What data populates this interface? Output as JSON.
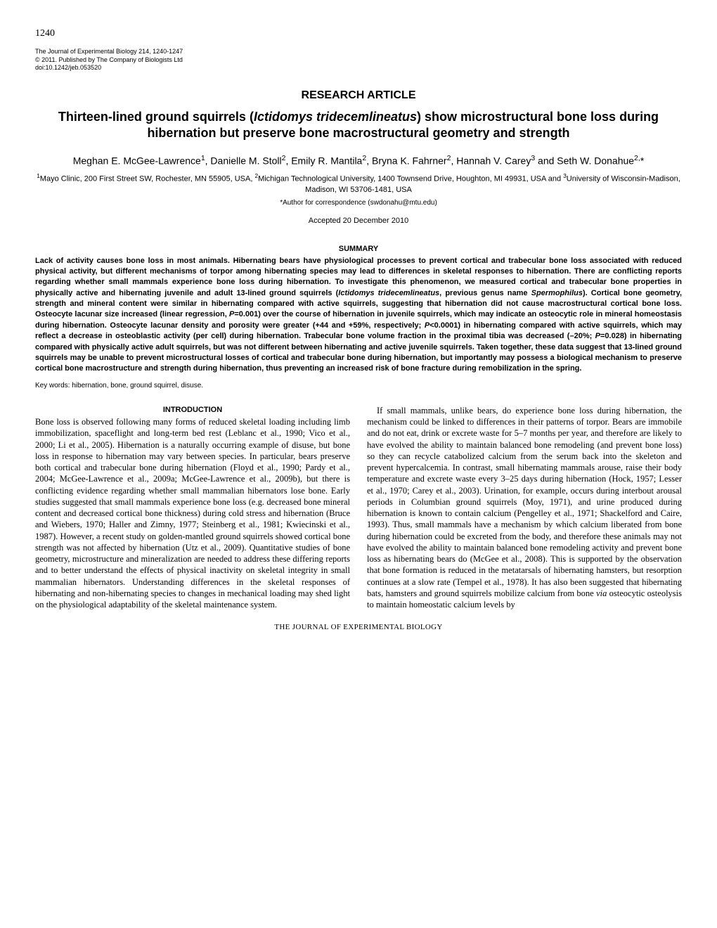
{
  "page_number": "1240",
  "journal_meta": {
    "line1": "The Journal of Experimental Biology 214, 1240-1247",
    "line2": "© 2011. Published by The Company of Biologists Ltd",
    "line3": "doi:10.1242/jeb.053520"
  },
  "article_type": "RESEARCH ARTICLE",
  "title_html": "Thirteen-lined ground squirrels (<span class='ital'>Ictidomys tridecemlineatus</span>) show microstructural bone loss during hibernation but preserve bone macrostructural geometry and strength",
  "authors_html": "Meghan E. McGee-Lawrence<sup>1</sup>, Danielle M. Stoll<sup>2</sup>, Emily R. Mantila<sup>2</sup>, Bryna K. Fahrner<sup>2</sup>, Hannah V. Carey<sup>3</sup> and Seth W. Donahue<sup>2,</sup>*",
  "affiliations_html": "<sup>1</sup>Mayo Clinic, 200 First Street SW, Rochester, MN 55905, USA, <sup>2</sup>Michigan Technological University, 1400 Townsend Drive, Houghton, MI 49931, USA and <sup>3</sup>University of Wisconsin-Madison, Madison, WI 53706-1481, USA",
  "correspondence": "*Author for correspondence (swdonahu@mtu.edu)",
  "accepted": "Accepted 20 December 2010",
  "summary_heading": "SUMMARY",
  "summary_html": "Lack of activity causes bone loss in most animals. Hibernating bears have physiological processes to prevent cortical and trabecular bone loss associated with reduced physical activity, but different mechanisms of torpor among hibernating species may lead to differences in skeletal responses to hibernation. There are conflicting reports regarding whether small mammals experience bone loss during hibernation. To investigate this phenomenon, we measured cortical and trabecular bone properties in physically active and hibernating juvenile and adult 13-lined ground squirrels (<span class='ital'>Ictidomys tridecemlineatus</span>, previous genus name <span class='ital'>Spermophilus</span>). Cortical bone geometry, strength and mineral content were similar in hibernating compared with active squirrels, suggesting that hibernation did not cause macrostructural cortical bone loss. Osteocyte lacunar size increased (linear regression, <span class='ital'>P</span>=0.001) over the course of hibernation in juvenile squirrels, which may indicate an osteocytic role in mineral homeostasis during hibernation. Osteocyte lacunar density and porosity were greater (+44 and +59%, respectively; <span class='ital'>P</span>&lt;0.0001) in hibernating compared with active squirrels, which may reflect a decrease in osteoblastic activity (per cell) during hibernation. Trabecular bone volume fraction in the proximal tibia was decreased (–20%; <span class='ital'>P</span>=0.028) in hibernating compared with physically active adult squirrels, but was not different between hibernating and active juvenile squirrels. Taken together, these data suggest that 13-lined ground squirrels may be unable to prevent microstructural losses of cortical and trabecular bone during hibernation, but importantly may possess a biological mechanism to preserve cortical bone macrostructure and strength during hibernation, thus preventing an increased risk of bone fracture during remobilization in the spring.",
  "keywords": "Key words: hibernation, bone, ground squirrel, disuse.",
  "intro_heading": "INTRODUCTION",
  "intro_para1": "Bone loss is observed following many forms of reduced skeletal loading including limb immobilization, spaceflight and long-term bed rest (Leblanc et al., 1990; Vico et al., 2000; Li et al., 2005). Hibernation is a naturally occurring example of disuse, but bone loss in response to hibernation may vary between species. In particular, bears preserve both cortical and trabecular bone during hibernation (Floyd et al., 1990; Pardy et al., 2004; McGee-Lawrence et al., 2009a; McGee-Lawrence et al., 2009b), but there is conflicting evidence regarding whether small mammalian hibernators lose bone. Early studies suggested that small mammals experience bone loss (e.g. decreased bone mineral content and decreased cortical bone thickness) during cold stress and hibernation (Bruce and Wiebers, 1970; Haller and Zimny, 1977; Steinberg et al., 1981; Kwiecinski et al., 1987). However, a recent study on golden-mantled ground squirrels showed cortical bone strength was not affected by hibernation (Utz et al., 2009). Quantitative studies of bone geometry, microstructure and mineralization are needed to address these differing reports and to better understand the effects of physical inactivity on skeletal integrity in small mammalian hibernators. Understanding differences in the skeletal responses of hibernating and non-hibernating species to changes in mechanical loading may shed light on the physiological adaptability of the skeletal maintenance system.",
  "intro_para2_html": "If small mammals, unlike bears, do experience bone loss during hibernation, the mechanism could be linked to differences in their patterns of torpor. Bears are immobile and do not eat, drink or excrete waste for 5–7 months per year, and therefore are likely to have evolved the ability to maintain balanced bone remodeling (and prevent bone loss) so they can recycle catabolized calcium from the serum back into the skeleton and prevent hypercalcemia. In contrast, small hibernating mammals arouse, raise their body temperature and excrete waste every 3–25 days during hibernation (Hock, 1957; Lesser et al., 1970; Carey et al., 2003). Urination, for example, occurs during interbout arousal periods in Columbian ground squirrels (Moy, 1971), and urine produced during hibernation is known to contain calcium (Pengelley et al., 1971; Shackelford and Caire, 1993). Thus, small mammals have a mechanism by which calcium liberated from bone during hibernation could be excreted from the body, and therefore these animals may not have evolved the ability to maintain balanced bone remodeling activity and prevent bone loss as hibernating bears do (McGee et al., 2008). This is supported by the observation that bone formation is reduced in the metatarsals of hibernating hamsters, but resorption continues at a slow rate (Tempel et al., 1978). It has also been suggested that hibernating bats, hamsters and ground squirrels mobilize calcium from bone <span class='ital'>via</span> osteocytic osteolysis to maintain homeostatic calcium levels by",
  "footer": "THE JOURNAL OF EXPERIMENTAL BIOLOGY"
}
